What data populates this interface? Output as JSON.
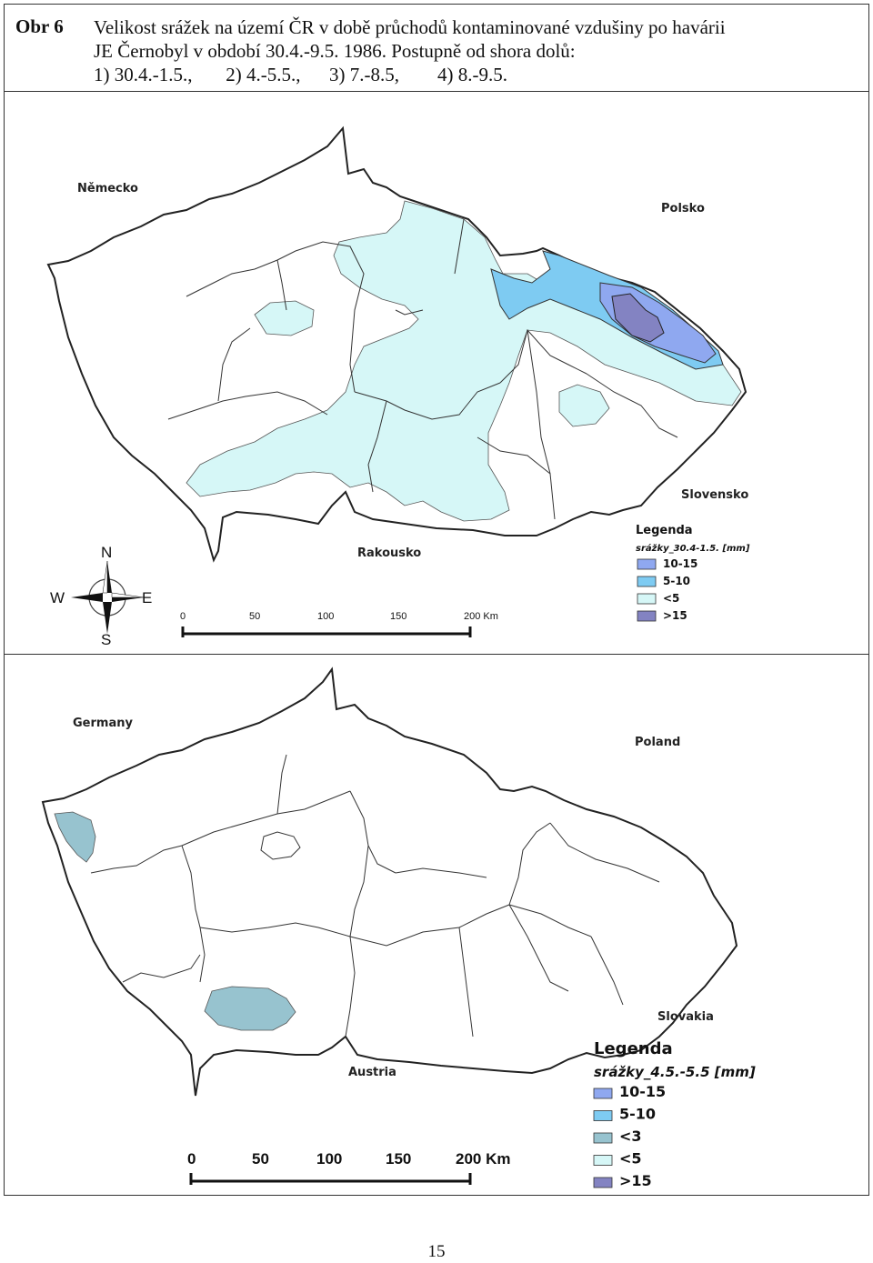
{
  "caption": {
    "label": "Obr 6",
    "line1": "Velikost srážek na území ČR v době průchodů kontaminované vzdušiny po havárii",
    "line2": "JE Černobyl v období 30.4.-9.5. 1986. Postupně od shora dolů:",
    "line3": "1) 30.4.-1.5.,       2) 4.-5.5.,      3) 7.-8.5,        4) 8.-9.5."
  },
  "map1": {
    "countries": {
      "west": "Německo",
      "north": "Polsko",
      "east": "Slovensko",
      "south": "Rakousko"
    },
    "compass": {
      "n": "N",
      "s": "S",
      "w": "W",
      "e": "E"
    },
    "scale": [
      "0",
      "50",
      "100",
      "150",
      "200 Km"
    ],
    "legend": {
      "title": "Legenda",
      "subtitle": "srážky_30.4-1.5. [mm]",
      "items": [
        {
          "label": "10-15",
          "color": "#8fa8f0"
        },
        {
          "label": "5-10",
          "color": "#7ecbf2"
        },
        {
          "label": "<5",
          "color": "#d6f7f7"
        },
        {
          "label": ">15",
          "color": "#8383c2"
        }
      ]
    }
  },
  "map2": {
    "countries": {
      "west": "Germany",
      "north": "Poland",
      "east": "Slovakia",
      "south": "Austria"
    },
    "scale": [
      "0",
      "50",
      "100",
      "150",
      "200 Km"
    ],
    "legend": {
      "title": "Legenda",
      "subtitle": "srážky_4.5.-5.5 [mm]",
      "items": [
        {
          "label": "10-15",
          "color": "#8fa8f0"
        },
        {
          "label": "5-10",
          "color": "#7ecbf2"
        },
        {
          "label": "<3",
          "color": "#97c3cf"
        },
        {
          "label": "<5",
          "color": "#d6f7f7"
        },
        {
          "label": ">15",
          "color": "#8383c2"
        }
      ]
    }
  },
  "page_number": "15"
}
